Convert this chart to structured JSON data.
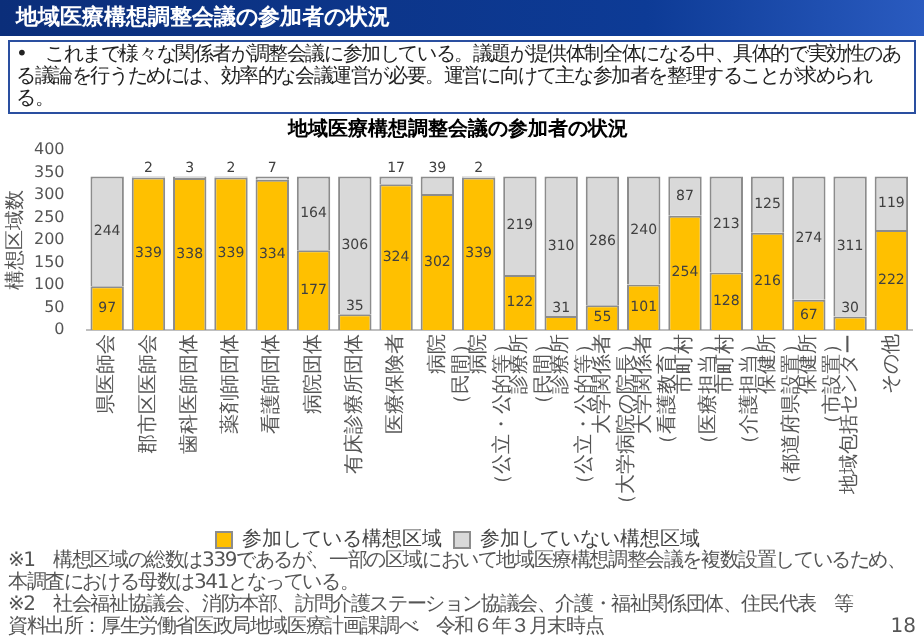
{
  "chart_data": {
    "type": "bar",
    "title": "地域医療構想調整会議の参加者の状況",
    "subtitle": "•　これまで様々な関係者が調整会議に参加している。議題が提供体制全体になる中、具体的で実効性のある議論を行うためには、効率的な会議運営が必要。運営に向けて主な参加者を整理することが求められる。",
    "ylabel": "構想区域数",
    "categories": [
      "県医師会",
      "郡市区医師会",
      "歯科医師団体",
      "薬剤師団体",
      "看護師団体",
      "病院団体",
      "有床診療所団体",
      "医療保険者",
      "病院（民間）",
      "病院（公立・公的等）",
      "診療所（民間）",
      "診療所（公立・公的等）",
      "大学関係者（大学病院の院長）",
      "大学関係者（看護教育）",
      "市町村（医療担当）",
      "市町村（介護担当）",
      "保健所（都道府県設置）",
      "保健所（市設置）",
      "地域包括センター",
      "その他"
    ],
    "series": [
      {
        "name": "参加している構想区域",
        "color": "#ffc000",
        "values": [
          97,
          339,
          338,
          339,
          334,
          177,
          35,
          324,
          302,
          339,
          122,
          31,
          55,
          101,
          254,
          128,
          216,
          67,
          30,
          222
        ]
      },
      {
        "name": "参加していない構想区域",
        "color": "#d9d9d9",
        "values": [
          244,
          2,
          3,
          2,
          7,
          164,
          306,
          17,
          39,
          2,
          219,
          310,
          286,
          240,
          87,
          213,
          125,
          274,
          311,
          119
        ]
      }
    ],
    "stacked": true,
    "data_labels": true,
    "ylim": [
      0,
      400
    ],
    "yticks": [
      0,
      50,
      100,
      150,
      200,
      250,
      300,
      350,
      400
    ],
    "legend": "bottom",
    "annotations": [
      "地域医療構想調整会議の参加者の状況",
      "※1　構想区域の総数は339であるが、一部の区域において地域医療構想調整会議を複数設置しているため、本調査における母数は341となっている。",
      "※2　社会福祉協議会、消防本部、訪問介護ステーション協議会、介護・福祉関係団体、住民代表　等",
      "資料出所：厚生労働省医政局地域医療計画課調べ　令和６年３月末時点",
      "18"
    ]
  }
}
